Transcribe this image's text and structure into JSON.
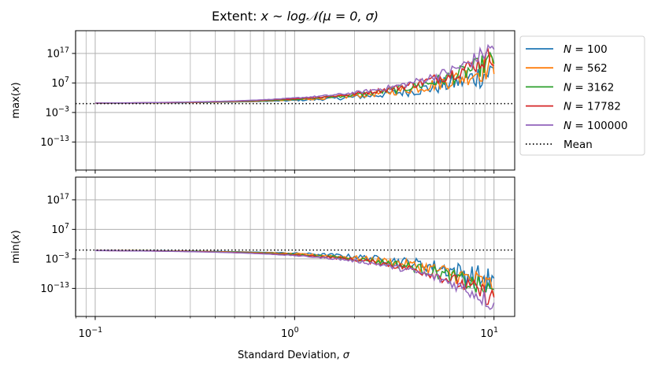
{
  "chart_data": {
    "type": "line",
    "title": "Extent: x ~ log𝒩(μ = 0, σ)",
    "title_parts": {
      "prefix": "Extent: ",
      "math": "x ~ log𝒩(μ = 0, σ)"
    },
    "xlabel": "Standard Deviation, σ",
    "xscale": "log",
    "yscale": "log",
    "xlim": [
      0.0797,
      12.7
    ],
    "grid": true,
    "x_ticks": [
      {
        "base": "10",
        "exp": "−1",
        "value": 0.1
      },
      {
        "base": "10",
        "exp": "0",
        "value": 1
      },
      {
        "base": "10",
        "exp": "1",
        "value": 10
      }
    ],
    "legend": {
      "placement": "outside-right-top",
      "entries": [
        {
          "label": "N = 100",
          "n": "100",
          "color": "#1f77b4",
          "style": "solid"
        },
        {
          "label": "N = 562",
          "n": "562",
          "color": "#ff7f0e",
          "style": "solid"
        },
        {
          "label": "N = 3162",
          "n": "3162",
          "color": "#2ca02c",
          "style": "solid"
        },
        {
          "label": "N = 17782",
          "n": "17782",
          "color": "#d62728",
          "style": "solid"
        },
        {
          "label": "N = 100000",
          "n": "100000",
          "color": "#9467bd",
          "style": "solid"
        },
        {
          "label": "Mean",
          "color": "#000000",
          "style": "dotted"
        }
      ]
    },
    "subplots": [
      {
        "name": "max",
        "ylabel": "max(x)",
        "ylim_log10": [
          -22.5,
          24.7
        ],
        "y_ticks": [
          {
            "base": "10",
            "exp": "17",
            "value_log10": 17
          },
          {
            "base": "10",
            "exp": "7",
            "value_log10": 7
          },
          {
            "base": "10",
            "exp": "−3",
            "value_log10": -3
          },
          {
            "base": "10",
            "exp": "−13",
            "value_log10": -13
          }
        ],
        "mean_log10": 0,
        "sigma": [
          0.1,
          0.2,
          0.5,
          1,
          2,
          3,
          5,
          7,
          10
        ],
        "series_log10": [
          {
            "name": "N = 100",
            "values": [
              0.11,
              0.22,
              0.56,
              1.1,
              2.2,
              3.4,
              5.6,
              7.8,
              11.2
            ]
          },
          {
            "name": "N = 562",
            "values": [
              0.13,
              0.26,
              0.65,
              1.3,
              2.6,
              3.9,
              6.5,
              9.1,
              13.0
            ]
          },
          {
            "name": "N = 3162",
            "values": [
              0.15,
              0.3,
              0.74,
              1.5,
              3.0,
              4.4,
              7.4,
              10.4,
              14.8
            ]
          },
          {
            "name": "N = 17782",
            "values": [
              0.17,
              0.33,
              0.83,
              1.7,
              3.3,
              5.0,
              8.3,
              11.6,
              16.6
            ]
          },
          {
            "name": "N = 100000",
            "values": [
              0.19,
              0.37,
              0.92,
              1.9,
              3.7,
              5.5,
              9.2,
              12.8,
              19.5
            ]
          }
        ]
      },
      {
        "name": "min",
        "ylabel": "min(x)",
        "ylim_log10": [
          -22.5,
          24.7
        ],
        "y_ticks": [
          {
            "base": "10",
            "exp": "17",
            "value_log10": 17
          },
          {
            "base": "10",
            "exp": "7",
            "value_log10": 7
          },
          {
            "base": "10",
            "exp": "−3",
            "value_log10": -3
          },
          {
            "base": "10",
            "exp": "−13",
            "value_log10": -13
          }
        ],
        "mean_log10": 0,
        "sigma": [
          0.1,
          0.2,
          0.5,
          1,
          2,
          3,
          5,
          7,
          10
        ],
        "series_log10": [
          {
            "name": "N = 100",
            "values": [
              -0.11,
              -0.22,
              -0.56,
              -1.1,
              -2.2,
              -3.4,
              -5.6,
              -7.8,
              -11.2
            ]
          },
          {
            "name": "N = 562",
            "values": [
              -0.13,
              -0.26,
              -0.65,
              -1.3,
              -2.6,
              -3.9,
              -6.5,
              -9.1,
              -13.0
            ]
          },
          {
            "name": "N = 3162",
            "values": [
              -0.15,
              -0.3,
              -0.74,
              -1.5,
              -3.0,
              -4.4,
              -7.4,
              -10.4,
              -14.8
            ]
          },
          {
            "name": "N = 17782",
            "values": [
              -0.17,
              -0.33,
              -0.83,
              -1.7,
              -3.3,
              -5.0,
              -8.3,
              -11.6,
              -16.6
            ]
          },
          {
            "name": "N = 100000",
            "values": [
              -0.19,
              -0.37,
              -0.92,
              -1.9,
              -3.7,
              -5.5,
              -9.2,
              -12.8,
              -18.5
            ]
          }
        ]
      }
    ]
  }
}
